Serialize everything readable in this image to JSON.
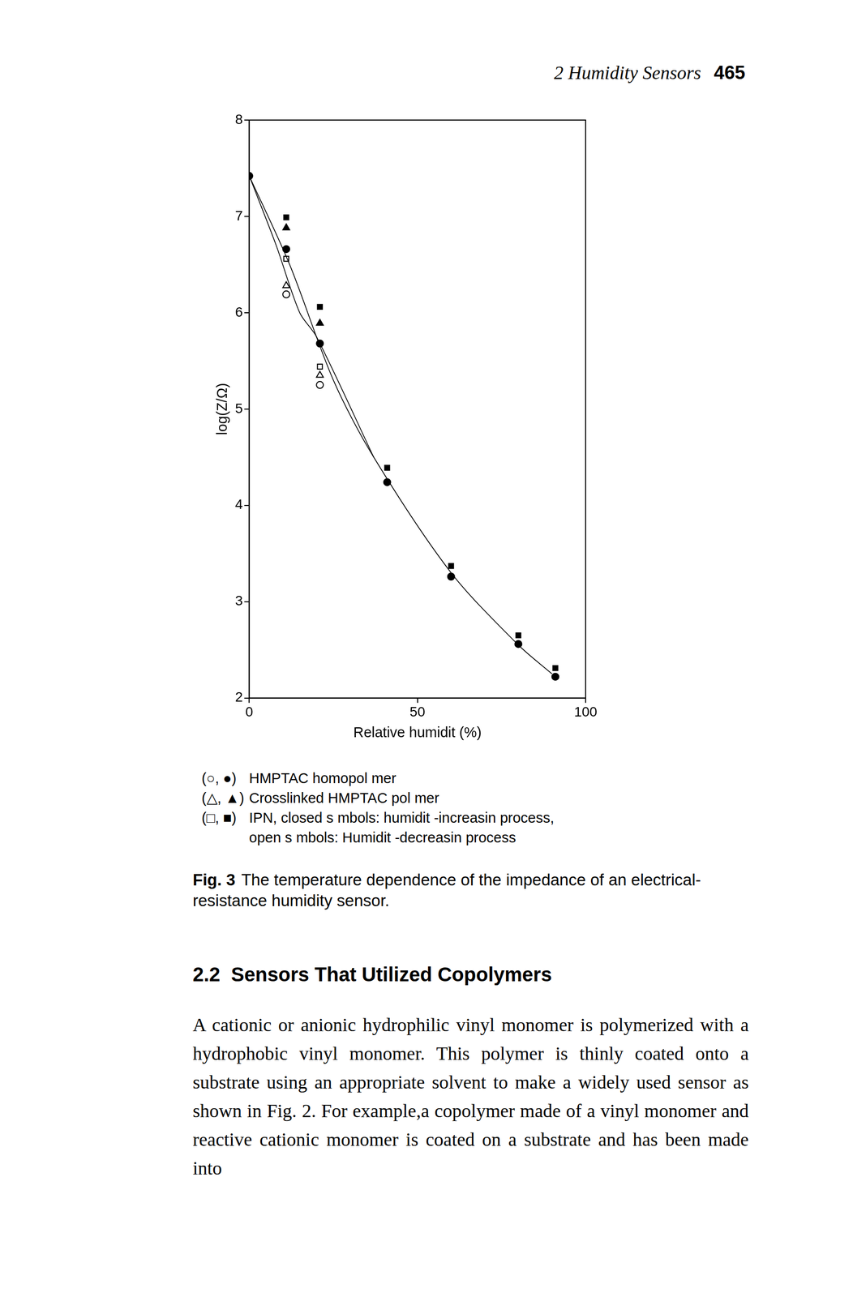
{
  "header": {
    "chapter": "2 Humidity Sensors",
    "page": "465"
  },
  "chart_data": {
    "type": "scatter",
    "x_label": "Relative humidit (%)",
    "y_label": "log(Z/Ω)",
    "xlim": [
      0,
      100
    ],
    "ylim": [
      2,
      8
    ],
    "xticks": [
      0,
      50,
      100
    ],
    "yticks": [
      2,
      3,
      4,
      5,
      6,
      7,
      8
    ],
    "grid": false,
    "series": [
      {
        "type": "line",
        "marker": "none",
        "line_style": "solid",
        "color": "#000000",
        "x": [
          0,
          12,
          25,
          37,
          60,
          80,
          90
        ],
        "values": [
          7.42,
          6.5,
          5.3,
          4.5,
          3.3,
          2.55,
          2.25
        ]
      },
      {
        "type": "line",
        "marker": "none",
        "line_style": "solid",
        "color": "#000000",
        "x": [
          0,
          8,
          15,
          20,
          37
        ],
        "values": [
          7.42,
          6.7,
          6.0,
          5.75,
          4.5
        ]
      },
      {
        "type": "scatter",
        "marker": "circle",
        "color": "#000000",
        "x": [
          0,
          11,
          21,
          41,
          60,
          80,
          91
        ],
        "values": [
          7.42,
          6.66,
          5.68,
          4.24,
          3.26,
          2.56,
          2.22
        ]
      },
      {
        "type": "scatter",
        "marker": "circle-open",
        "color": "#000000",
        "x": [
          11,
          21
        ],
        "values": [
          6.19,
          5.25
        ]
      },
      {
        "type": "scatter",
        "marker": "triangle",
        "color": "#000000",
        "x": [
          11,
          21
        ],
        "values": [
          6.88,
          5.89
        ]
      },
      {
        "type": "scatter",
        "marker": "triangle-open",
        "color": "#000000",
        "x": [
          11,
          21
        ],
        "values": [
          6.28,
          5.35
        ]
      },
      {
        "type": "scatter",
        "marker": "square",
        "color": "#000000",
        "x": [
          11,
          21,
          41,
          60,
          80,
          91
        ],
        "values": [
          6.99,
          6.06,
          4.39,
          3.37,
          2.65,
          2.31
        ]
      },
      {
        "type": "scatter",
        "marker": "square-open",
        "color": "#000000",
        "x": [
          11,
          21
        ],
        "values": [
          6.56,
          5.44
        ]
      }
    ]
  },
  "legend": [
    {
      "symbols": "(○, ●)",
      "text": "HMPTAC homopol mer"
    },
    {
      "symbols": "(△, ▲)",
      "text": "Crosslinked HMPTAC pol mer"
    },
    {
      "symbols": "(□, ■)",
      "text": "IPN, closed s mbols: humidit -increasin process,",
      "continuation": "open s mbols: Humidit -decreasin process"
    }
  ],
  "caption": {
    "label": "Fig. 3",
    "text": "The temperature dependence of the impedance of an electrical-resistance humidity sensor."
  },
  "section": {
    "number": "2.2",
    "title": "Sensors That Utilized Copolymers"
  },
  "paragraph": "A cationic or anionic hydrophilic vinyl monomer is polymerized with a hydrophobic vinyl monomer. This polymer is thinly coated onto a substrate using an appropriate solvent to make a widely used sensor as shown in Fig. 2. For example,a copolymer made of a vinyl monomer and reactive cationic monomer is coated on a substrate and has been made into"
}
